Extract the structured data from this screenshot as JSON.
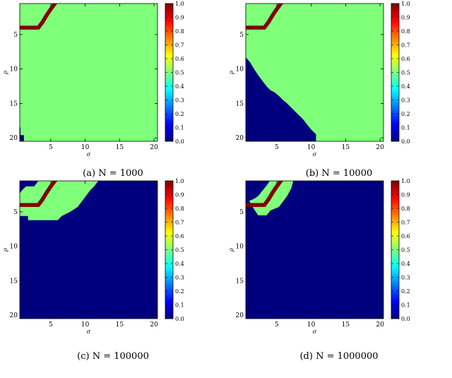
{
  "colors": {
    "green": "#80ff7a",
    "red": "#800000",
    "blue": "#00007f"
  },
  "colorbar": {
    "stops": [
      "#00007f",
      "#0000ff",
      "#007fff",
      "#00ffff",
      "#7fff7f",
      "#ffff00",
      "#ff7f00",
      "#ff0000",
      "#7f0000"
    ],
    "ticks": [
      "0.0",
      "0.1",
      "0.2",
      "0.3",
      "0.4",
      "0.5",
      "0.6",
      "0.7",
      "0.8",
      "0.9",
      "1.0"
    ]
  },
  "chart_data": [
    {
      "type": "heatmap",
      "caption": "(a) N = 1000",
      "xlabel": "σ",
      "ylabel": "ρ",
      "xticks": [
        "5",
        "10",
        "15",
        "20"
      ],
      "yticks": [
        "5",
        "10",
        "15",
        "20"
      ],
      "xlim": [
        0.5,
        20.5
      ],
      "ylim": [
        0.5,
        20.5
      ],
      "grid_n": 36,
      "background_value": 0.5,
      "blue_boundary": [
        [
          0,
          18.5
        ],
        [
          0,
          20.5
        ],
        [
          1.1,
          20.5
        ],
        [
          1.1,
          19.6
        ],
        [
          0.6,
          19.6
        ],
        [
          0.6,
          18.5
        ]
      ],
      "red_staircase": [
        [
          5.6,
          0.5
        ],
        [
          5,
          1.3
        ],
        [
          4.4,
          2.2
        ],
        [
          3.8,
          3.2
        ],
        [
          3.2,
          4.0
        ],
        [
          0.8,
          4.0
        ]
      ],
      "value_levels": {
        "green": 0.5,
        "blue": 0.0,
        "red": 1.0
      }
    },
    {
      "type": "heatmap",
      "caption": "(b) N = 10000",
      "xlabel": "σ",
      "ylabel": "ρ",
      "xticks": [
        "5",
        "10",
        "15",
        "20"
      ],
      "yticks": [
        "5",
        "10",
        "15",
        "20"
      ],
      "xlim": [
        0.5,
        20.5
      ],
      "ylim": [
        0.5,
        20.5
      ],
      "grid_n": 36,
      "background_value": 0.5,
      "blue_boundary": [
        [
          0.5,
          8.3
        ],
        [
          1.1,
          9.0
        ],
        [
          1.7,
          10.0
        ],
        [
          2.3,
          10.9
        ],
        [
          2.9,
          11.7
        ],
        [
          3.5,
          12.5
        ],
        [
          4.1,
          13.1
        ],
        [
          4.7,
          13.4
        ],
        [
          5.3,
          13.9
        ],
        [
          5.9,
          14.5
        ],
        [
          6.5,
          15.0
        ],
        [
          7.1,
          15.6
        ],
        [
          7.7,
          16.2
        ],
        [
          8.3,
          16.8
        ],
        [
          8.9,
          17.4
        ],
        [
          9.5,
          18.2
        ],
        [
          10.1,
          18.9
        ],
        [
          10.7,
          19.5
        ],
        [
          10.7,
          20.5
        ],
        [
          0.5,
          20.5
        ]
      ],
      "red_staircase": [
        [
          5.6,
          0.5
        ],
        [
          5,
          1.3
        ],
        [
          4.4,
          2.2
        ],
        [
          3.8,
          3.2
        ],
        [
          3.2,
          4.0
        ],
        [
          0.8,
          4.0
        ]
      ],
      "value_levels": {
        "green": 0.5,
        "blue": 0.0,
        "red": 1.0
      }
    },
    {
      "type": "heatmap",
      "caption": "(c) N = 100000",
      "xlabel": "σ",
      "ylabel": "ρ",
      "xticks": [
        "5",
        "10",
        "15",
        "20"
      ],
      "yticks": [
        "5",
        "10",
        "15",
        "20"
      ],
      "xlim": [
        0.5,
        20.5
      ],
      "ylim": [
        0.5,
        20.5
      ],
      "grid_n": 36,
      "background_value": 0.0,
      "green_region": [
        [
          0.5,
          5.6
        ],
        [
          1.7,
          5.6
        ],
        [
          1.7,
          6.2
        ],
        [
          6.0,
          6.2
        ],
        [
          6.6,
          5.6
        ],
        [
          7.8,
          5.0
        ],
        [
          8.9,
          4.3
        ],
        [
          9.5,
          3.5
        ],
        [
          10.1,
          2.7
        ],
        [
          10.7,
          1.9
        ],
        [
          11.3,
          1.3
        ],
        [
          11.9,
          0.5
        ],
        [
          3.2,
          0.5
        ],
        [
          2.6,
          1.3
        ],
        [
          1.4,
          1.3
        ],
        [
          0.8,
          1.9
        ],
        [
          0.5,
          2.3
        ]
      ],
      "red_staircase": [
        [
          5.6,
          0.5
        ],
        [
          5,
          1.3
        ],
        [
          4.4,
          2.2
        ],
        [
          3.8,
          3.2
        ],
        [
          3.2,
          4.0
        ],
        [
          0.8,
          4.0
        ]
      ],
      "value_levels": {
        "green": 0.5,
        "blue": 0.0,
        "red": 1.0
      }
    },
    {
      "type": "heatmap",
      "caption": "(d) N = 1000000",
      "xlabel": "σ",
      "ylabel": "ρ",
      "xticks": [
        "5",
        "10",
        "15",
        "20"
      ],
      "yticks": [
        "5",
        "10",
        "15",
        "20"
      ],
      "xlim": [
        0.5,
        20.5
      ],
      "ylim": [
        0.5,
        20.5
      ],
      "grid_n": 36,
      "background_value": 0.0,
      "green_region": [
        [
          1.0,
          3.4
        ],
        [
          1.7,
          4.6
        ],
        [
          2.3,
          5.5
        ],
        [
          3.5,
          5.5
        ],
        [
          4.1,
          4.8
        ],
        [
          5.3,
          4.3
        ],
        [
          5.9,
          3.5
        ],
        [
          6.5,
          2.7
        ],
        [
          7.1,
          1.6
        ],
        [
          7.4,
          0.5
        ],
        [
          4.0,
          0.5
        ],
        [
          3.5,
          1.2
        ],
        [
          2.3,
          2.7
        ],
        [
          1.7,
          3.1
        ]
      ],
      "red_staircase": [
        [
          5.6,
          0.5
        ],
        [
          5,
          1.3
        ],
        [
          4.4,
          2.2
        ],
        [
          3.8,
          3.2
        ],
        [
          3.2,
          4.0
        ],
        [
          0.8,
          4.0
        ]
      ],
      "value_levels": {
        "green": 0.5,
        "blue": 0.0,
        "red": 1.0
      }
    }
  ]
}
